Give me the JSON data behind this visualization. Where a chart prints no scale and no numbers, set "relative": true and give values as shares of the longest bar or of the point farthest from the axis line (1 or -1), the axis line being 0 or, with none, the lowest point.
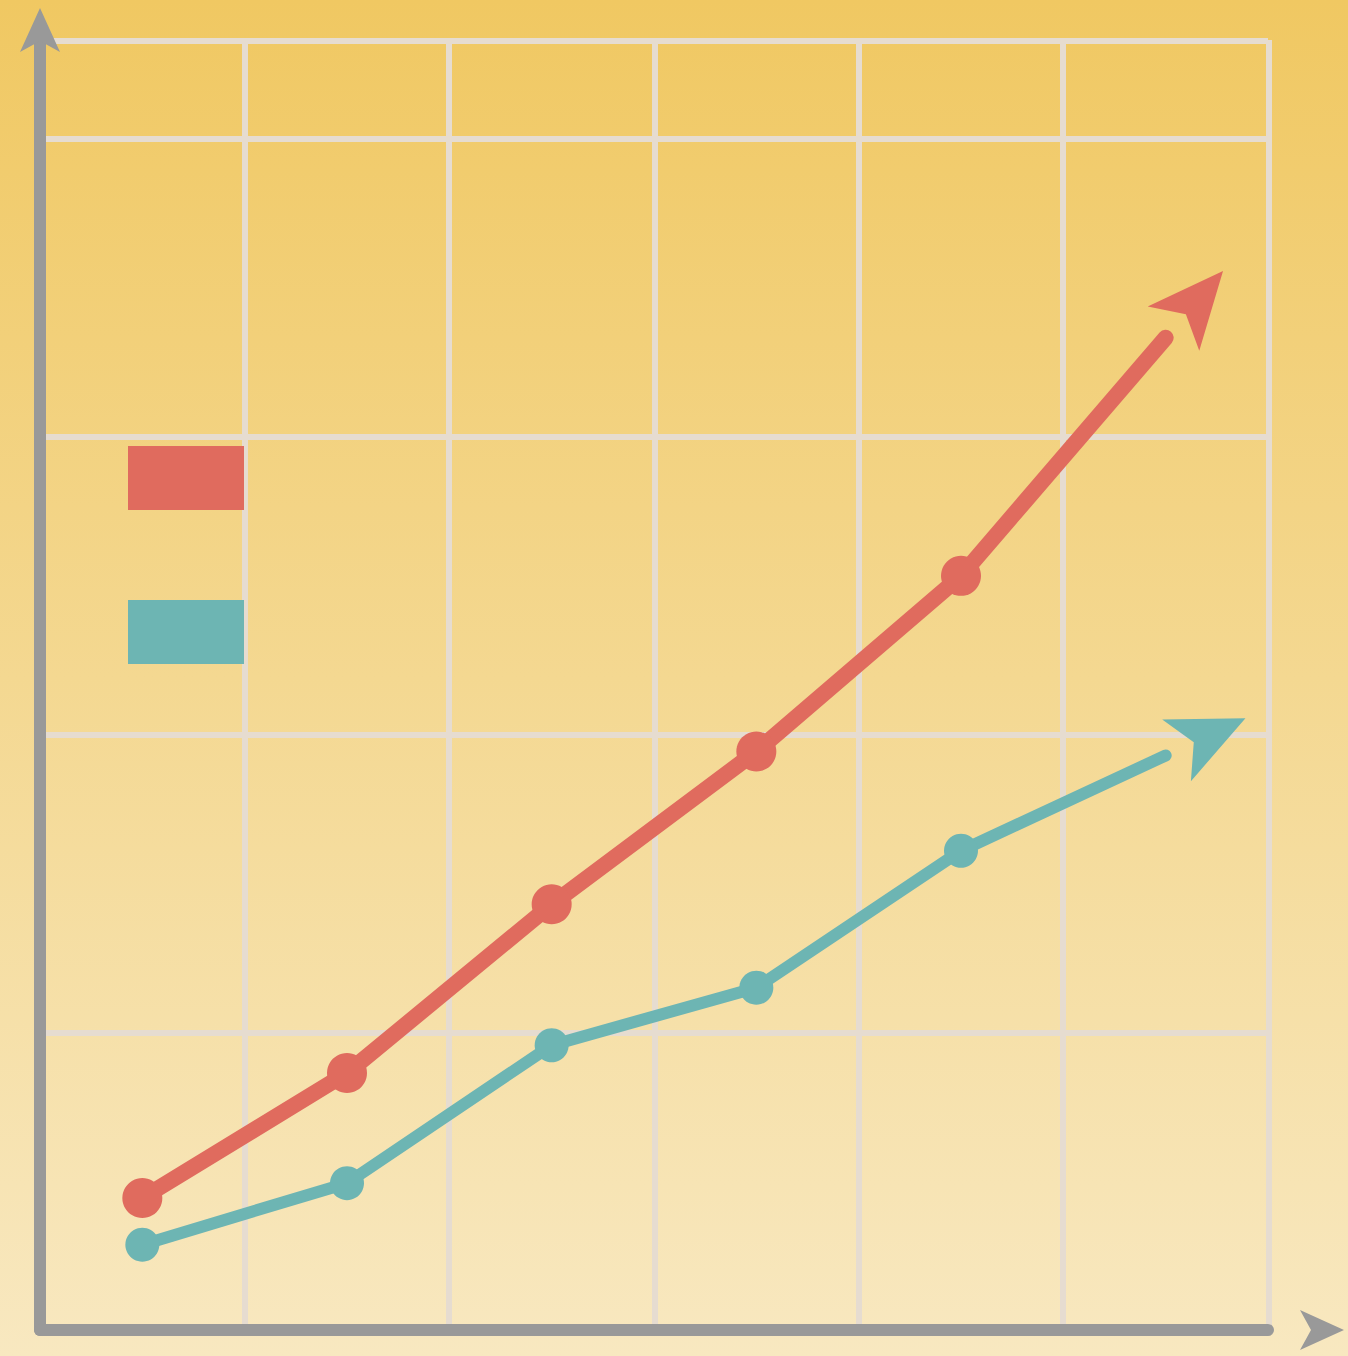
{
  "chart_data": {
    "type": "line",
    "relative": true,
    "categories": [
      null,
      null,
      null,
      null,
      null,
      null
    ],
    "series": [
      {
        "color": "#e06b5e",
        "values": [
          0.133,
          0.259,
          0.429,
          0.583,
          0.76,
          1
        ]
      },
      {
        "color": "#6db5b3",
        "values": [
          0.086,
          0.148,
          0.287,
          0.345,
          0.483,
          0.579
        ]
      }
    ],
    "grid": true,
    "marker": "circle",
    "line_style": "solid"
  }
}
